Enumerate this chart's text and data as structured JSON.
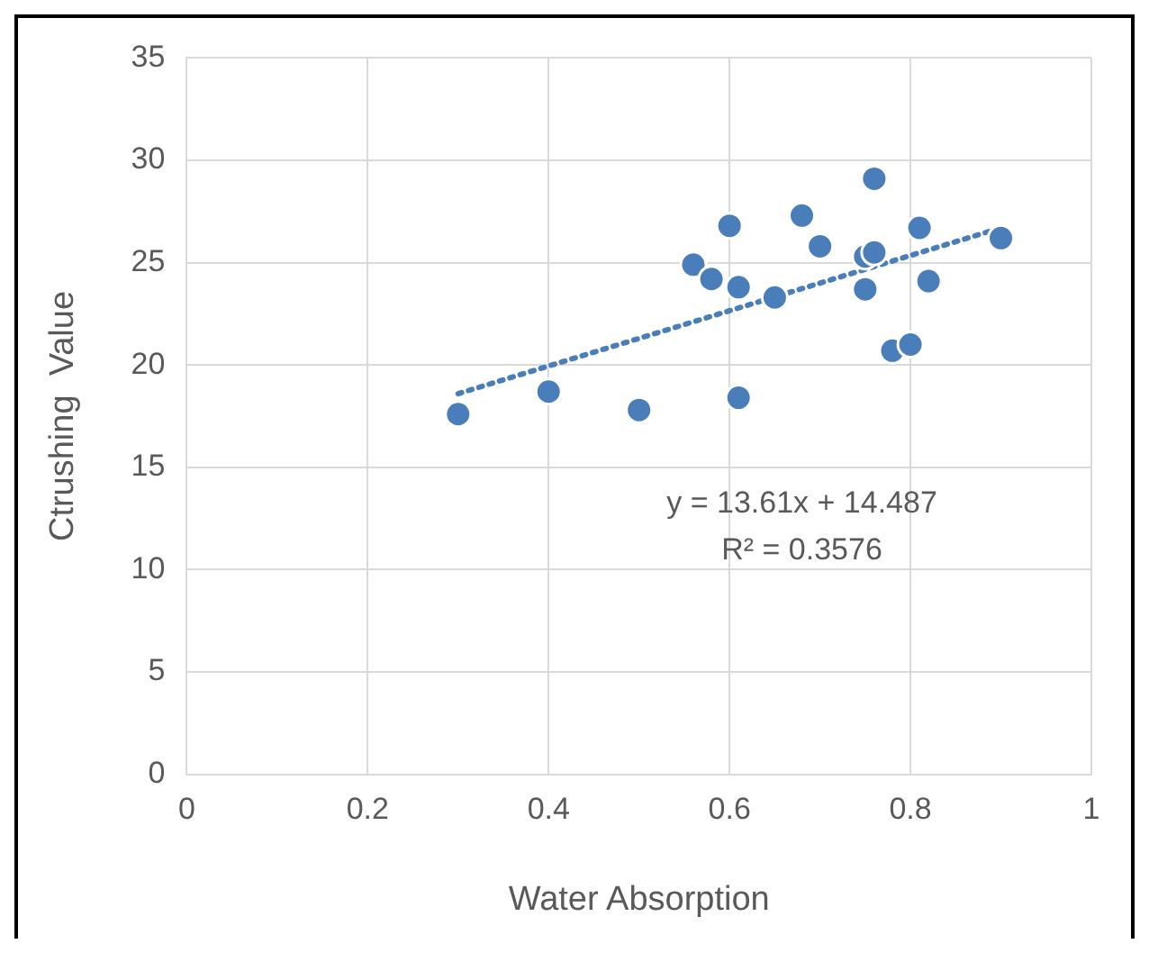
{
  "chart_data": {
    "type": "scatter",
    "xlabel": "Water Absorption",
    "ylabel": "Ctrushing  Value",
    "xlim": [
      0,
      1
    ],
    "xticks": [
      0,
      0.2,
      0.4,
      0.6,
      0.8,
      1
    ],
    "ylim": [
      0,
      35
    ],
    "yticks": [
      0,
      5,
      10,
      15,
      20,
      25,
      30,
      35
    ],
    "grid": true,
    "legend": false,
    "annotations": [
      "y = 13.61x + 14.487",
      "R² = 0.3576"
    ],
    "series": [
      {
        "marker": "circle",
        "color": "#4a7ebb",
        "x": [
          0.3,
          0.4,
          0.5,
          0.61,
          0.56,
          0.58,
          0.6,
          0.61,
          0.65,
          0.68,
          0.7,
          0.75,
          0.75,
          0.76,
          0.76,
          0.78,
          0.8,
          0.81,
          0.82,
          0.9
        ],
        "values": [
          17.6,
          18.7,
          17.8,
          18.4,
          24.9,
          24.2,
          26.8,
          23.8,
          23.3,
          27.3,
          25.8,
          23.7,
          25.3,
          25.5,
          29.1,
          20.7,
          21.0,
          26.7,
          24.1,
          26.2
        ]
      },
      {
        "type": "line",
        "marker": "none",
        "line_style": "dotted",
        "color": "#4a7ebb",
        "x": [
          0.3,
          0.9
        ],
        "values": [
          18.6,
          26.7
        ]
      }
    ]
  }
}
